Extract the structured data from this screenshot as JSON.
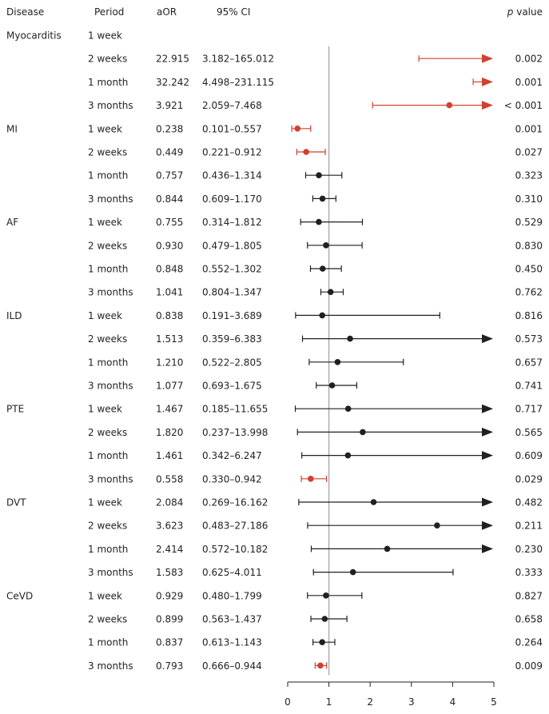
{
  "chart_data": {
    "type": "forest",
    "headers": {
      "disease": "Disease",
      "period": "Period",
      "aor": "aOR",
      "ci": "95% CI",
      "p_italic": "p",
      "p_rest": " value"
    },
    "xlim": [
      0,
      5
    ],
    "x_ticks": [
      "0",
      "1",
      "2",
      "3",
      "4",
      "5"
    ],
    "reference_line": 1,
    "colors": {
      "significant": "#d2402f",
      "normal": "#231f20",
      "reference": "#a0a0a0"
    },
    "rows": [
      {
        "disease": "Myocarditis",
        "period": "1 week",
        "aor": "",
        "ci": "",
        "p": "",
        "est": null,
        "lo": null,
        "hi": null,
        "sig": false
      },
      {
        "disease": "",
        "period": "2 weeks",
        "aor": "22.915",
        "ci": "3.182–165.012",
        "p": "0.002",
        "est": 22.915,
        "lo": 3.182,
        "hi": 165.012,
        "sig": true
      },
      {
        "disease": "",
        "period": "1 month",
        "aor": "32.242",
        "ci": "4.498–231.115",
        "p": "0.001",
        "est": 32.242,
        "lo": 4.498,
        "hi": 231.115,
        "sig": true
      },
      {
        "disease": "",
        "period": "3 months",
        "aor": "3.921",
        "ci": "2.059–7.468",
        "p": "< 0.001",
        "est": 3.921,
        "lo": 2.059,
        "hi": 7.468,
        "sig": true
      },
      {
        "disease": "MI",
        "period": "1 week",
        "aor": "0.238",
        "ci": "0.101–0.557",
        "p": "0.001",
        "est": 0.238,
        "lo": 0.101,
        "hi": 0.557,
        "sig": true
      },
      {
        "disease": "",
        "period": "2 weeks",
        "aor": "0.449",
        "ci": "0.221–0.912",
        "p": "0.027",
        "est": 0.449,
        "lo": 0.221,
        "hi": 0.912,
        "sig": true
      },
      {
        "disease": "",
        "period": "1 month",
        "aor": "0.757",
        "ci": "0.436–1.314",
        "p": "0.323",
        "est": 0.757,
        "lo": 0.436,
        "hi": 1.314,
        "sig": false
      },
      {
        "disease": "",
        "period": "3 months",
        "aor": "0.844",
        "ci": "0.609–1.170",
        "p": "0.310",
        "est": 0.844,
        "lo": 0.609,
        "hi": 1.17,
        "sig": false
      },
      {
        "disease": "AF",
        "period": "1 week",
        "aor": "0.755",
        "ci": "0.314–1.812",
        "p": "0.529",
        "est": 0.755,
        "lo": 0.314,
        "hi": 1.812,
        "sig": false
      },
      {
        "disease": "",
        "period": "2 weeks",
        "aor": "0.930",
        "ci": "0.479–1.805",
        "p": "0.830",
        "est": 0.93,
        "lo": 0.479,
        "hi": 1.805,
        "sig": false
      },
      {
        "disease": "",
        "period": "1 month",
        "aor": "0.848",
        "ci": "0.552–1.302",
        "p": "0.450",
        "est": 0.848,
        "lo": 0.552,
        "hi": 1.302,
        "sig": false
      },
      {
        "disease": "",
        "period": "3 months",
        "aor": "1.041",
        "ci": "0.804–1.347",
        "p": "0.762",
        "est": 1.041,
        "lo": 0.804,
        "hi": 1.347,
        "sig": false
      },
      {
        "disease": "ILD",
        "period": "1 week",
        "aor": "0.838",
        "ci": "0.191–3.689",
        "p": "0.816",
        "est": 0.838,
        "lo": 0.191,
        "hi": 3.689,
        "sig": false
      },
      {
        "disease": "",
        "period": "2 weeks",
        "aor": "1.513",
        "ci": "0.359–6.383",
        "p": "0.573",
        "est": 1.513,
        "lo": 0.359,
        "hi": 6.383,
        "sig": false
      },
      {
        "disease": "",
        "period": "1 month",
        "aor": "1.210",
        "ci": "0.522–2.805",
        "p": "0.657",
        "est": 1.21,
        "lo": 0.522,
        "hi": 2.805,
        "sig": false
      },
      {
        "disease": "",
        "period": "3 months",
        "aor": "1.077",
        "ci": "0.693–1.675",
        "p": "0.741",
        "est": 1.077,
        "lo": 0.693,
        "hi": 1.675,
        "sig": false
      },
      {
        "disease": "PTE",
        "period": "1 week",
        "aor": "1.467",
        "ci": "0.185–11.655",
        "p": "0.717",
        "est": 1.467,
        "lo": 0.185,
        "hi": 11.655,
        "sig": false
      },
      {
        "disease": "",
        "period": "2 weeks",
        "aor": "1.820",
        "ci": "0.237–13.998",
        "p": "0.565",
        "est": 1.82,
        "lo": 0.237,
        "hi": 13.998,
        "sig": false
      },
      {
        "disease": "",
        "period": "1 month",
        "aor": "1.461",
        "ci": "0.342–6.247",
        "p": "0.609",
        "est": 1.461,
        "lo": 0.342,
        "hi": 6.247,
        "sig": false
      },
      {
        "disease": "",
        "period": "3 months",
        "aor": "0.558",
        "ci": "0.330–0.942",
        "p": "0.029",
        "est": 0.558,
        "lo": 0.33,
        "hi": 0.942,
        "sig": true
      },
      {
        "disease": "DVT",
        "period": "1 week",
        "aor": "2.084",
        "ci": "0.269–16.162",
        "p": "0.482",
        "est": 2.084,
        "lo": 0.269,
        "hi": 16.162,
        "sig": false
      },
      {
        "disease": "",
        "period": "2 weeks",
        "aor": "3.623",
        "ci": "0.483–27.186",
        "p": "0.211",
        "est": 3.623,
        "lo": 0.483,
        "hi": 27.186,
        "sig": false
      },
      {
        "disease": "",
        "period": "1 month",
        "aor": "2.414",
        "ci": "0.572–10.182",
        "p": "0.230",
        "est": 2.414,
        "lo": 0.572,
        "hi": 10.182,
        "sig": false
      },
      {
        "disease": "",
        "period": "3 months",
        "aor": "1.583",
        "ci": "0.625–4.011",
        "p": "0.333",
        "est": 1.583,
        "lo": 0.625,
        "hi": 4.011,
        "sig": false
      },
      {
        "disease": "CeVD",
        "period": "1 week",
        "aor": "0.929",
        "ci": "0.480–1.799",
        "p": "0.827",
        "est": 0.929,
        "lo": 0.48,
        "hi": 1.799,
        "sig": false
      },
      {
        "disease": "",
        "period": "2 weeks",
        "aor": "0.899",
        "ci": "0.563–1.437",
        "p": "0.658",
        "est": 0.899,
        "lo": 0.563,
        "hi": 1.437,
        "sig": false
      },
      {
        "disease": "",
        "period": "1 month",
        "aor": "0.837",
        "ci": "0.613–1.143",
        "p": "0.264",
        "est": 0.837,
        "lo": 0.613,
        "hi": 1.143,
        "sig": false
      },
      {
        "disease": "",
        "period": "3 months",
        "aor": "0.793",
        "ci": "0.666–0.944",
        "p": "0.009",
        "est": 0.793,
        "lo": 0.666,
        "hi": 0.944,
        "sig": true
      }
    ]
  }
}
